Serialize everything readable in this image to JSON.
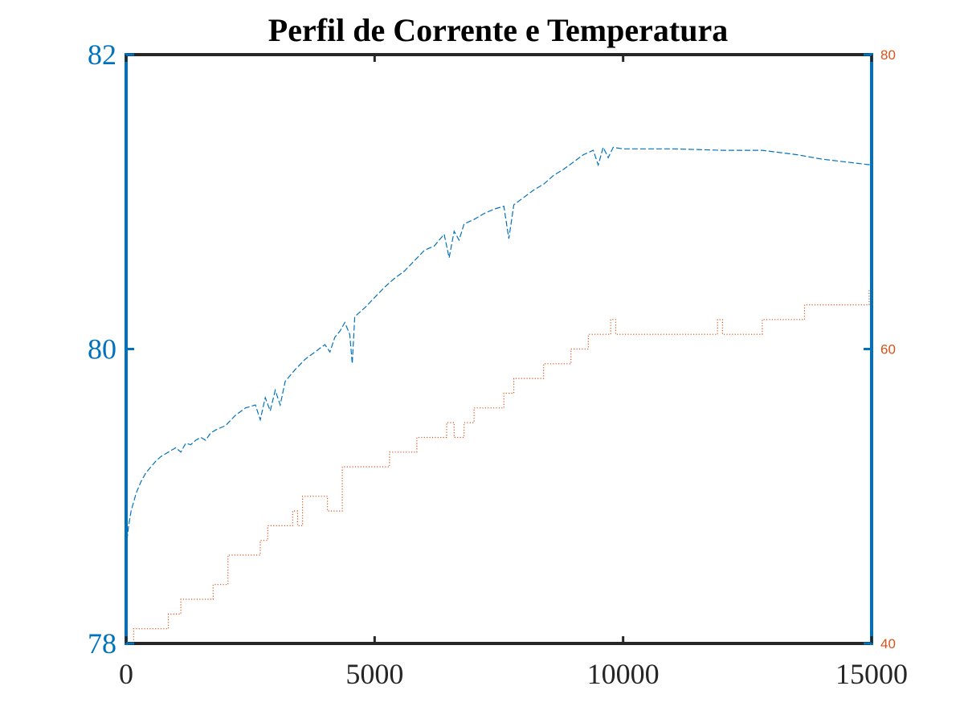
{
  "chart_data": {
    "type": "line",
    "title": "Perfil de Corrente e Temperatura",
    "xlabel": "",
    "ylabel_left": "",
    "ylabel_right": "",
    "xlim": [
      0,
      15000
    ],
    "ylim_left": [
      78,
      82
    ],
    "ylim_right": [
      40,
      80
    ],
    "x_ticks": [
      "0",
      "5000",
      "10000",
      "15000"
    ],
    "y_left_ticks": [
      "78",
      "80",
      "82"
    ],
    "y_right_ticks": [
      "40",
      "60",
      "80"
    ],
    "grid": false,
    "legend": "none",
    "colors": {
      "left_axis": "#0072BD",
      "right_axis": "#D95319",
      "series_left": "#0072BD",
      "series_right": "#D95319",
      "frame": "#262626"
    },
    "series": [
      {
        "axis": "left",
        "style": "dashed",
        "x": [
          0,
          50,
          100,
          200,
          300,
          400,
          500,
          600,
          700,
          800,
          900,
          1000,
          1100,
          1200,
          1300,
          1400,
          1500,
          1600,
          1700,
          1800,
          2000,
          2200,
          2400,
          2600,
          2700,
          2800,
          2900,
          3000,
          3100,
          3200,
          3400,
          3600,
          3800,
          4000,
          4100,
          4200,
          4300,
          4400,
          4500,
          4550,
          4600,
          4800,
          5000,
          5200,
          5400,
          5600,
          5800,
          6000,
          6200,
          6400,
          6500,
          6600,
          6700,
          6800,
          7000,
          7200,
          7400,
          7600,
          7700,
          7800,
          8000,
          8200,
          8400,
          8600,
          8800,
          9000,
          9200,
          9400,
          9500,
          9600,
          9700,
          9800,
          10000,
          11000,
          12000,
          12800,
          13500,
          14000,
          15000
        ],
        "y": [
          78.65,
          78.8,
          78.9,
          79.02,
          79.1,
          79.16,
          79.2,
          79.24,
          79.27,
          79.29,
          79.31,
          79.33,
          79.3,
          79.36,
          79.35,
          79.38,
          79.4,
          79.38,
          79.43,
          79.45,
          79.48,
          79.55,
          79.6,
          79.62,
          79.52,
          79.67,
          79.58,
          79.72,
          79.62,
          79.78,
          79.86,
          79.93,
          79.98,
          80.03,
          79.98,
          80.08,
          80.12,
          80.18,
          80.1,
          79.9,
          80.22,
          80.28,
          80.35,
          80.42,
          80.48,
          80.53,
          80.6,
          80.67,
          80.7,
          80.78,
          80.62,
          80.8,
          80.74,
          80.85,
          80.88,
          80.92,
          80.95,
          80.97,
          80.75,
          80.98,
          81.03,
          81.08,
          81.12,
          81.18,
          81.22,
          81.27,
          81.32,
          81.35,
          81.25,
          81.37,
          81.3,
          81.37,
          81.36,
          81.36,
          81.35,
          81.35,
          81.32,
          81.29,
          81.25
        ]
      },
      {
        "axis": "right",
        "style": "dotted",
        "type": "step",
        "x": [
          0,
          150,
          850,
          1100,
          1750,
          2050,
          2700,
          2850,
          3350,
          3450,
          3550,
          4050,
          4350,
          4450,
          5300,
          5850,
          6450,
          6600,
          6800,
          7000,
          7200,
          7600,
          7800,
          8400,
          8950,
          9300,
          9750,
          9850,
          11900,
          12000,
          12800,
          13650,
          14950,
          15000
        ],
        "y": [
          40,
          41,
          42,
          43,
          44,
          46,
          47,
          48,
          49,
          48,
          50,
          49,
          52,
          52,
          53,
          54,
          55,
          54,
          55,
          56,
          56,
          57,
          58,
          59,
          60,
          61,
          62,
          61,
          62,
          61,
          62,
          63,
          64,
          64
        ]
      }
    ]
  }
}
